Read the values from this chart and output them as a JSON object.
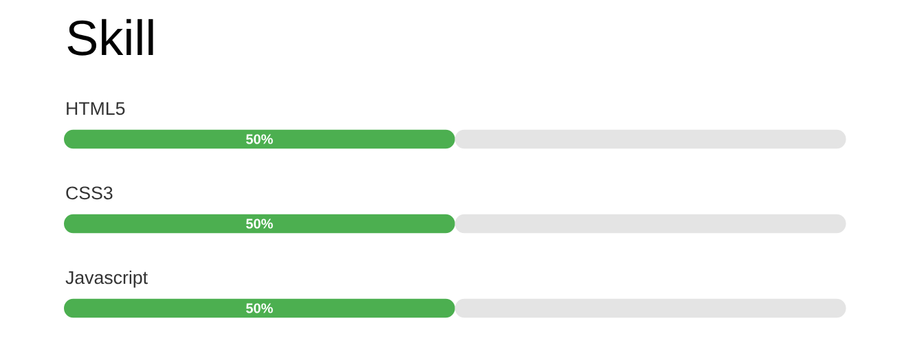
{
  "chart_data": {
    "type": "bar",
    "title": "Skill",
    "orientation": "horizontal",
    "stacked": true,
    "categories": [
      "HTML5",
      "CSS3",
      "Javascript"
    ],
    "series": [
      {
        "color": "#4caf50",
        "values": [
          50,
          50,
          50
        ],
        "value_labels": [
          "50%",
          "50%",
          "50%"
        ]
      },
      {
        "color": "#e4e4e4",
        "values": [
          50,
          50,
          50
        ]
      }
    ],
    "xlim": [
      0,
      100
    ],
    "tick_labels": "y"
  }
}
